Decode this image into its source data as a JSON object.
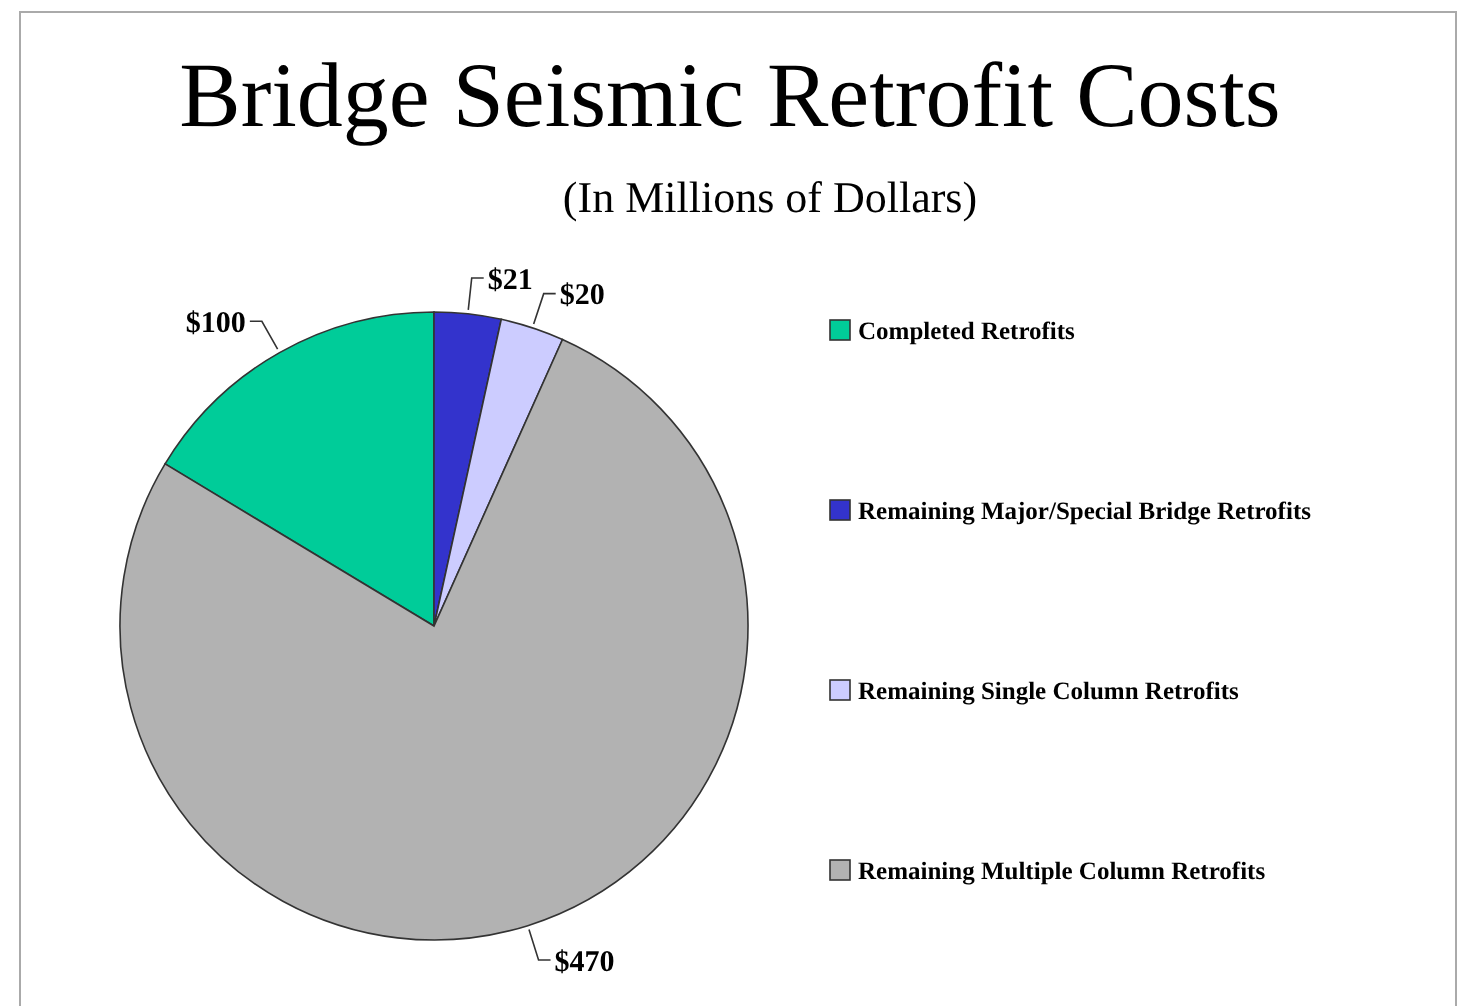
{
  "chart_data": {
    "type": "pie",
    "title": "Bridge Seismic Retrofit Costs",
    "subtitle": "(In Millions of Dollars)",
    "categories": [
      "Completed Retrofits",
      "Remaining Major/Special Bridge Retrofits",
      "Remaining Single Column Retrofits",
      "Remaining Multiple Column Retrofits"
    ],
    "values": [
      100,
      21,
      20,
      470
    ],
    "colors": [
      "#00cc99",
      "#3333cc",
      "#ccccff",
      "#b2b2b2"
    ],
    "value_labels": [
      "$100",
      "$21",
      "$20",
      "$470"
    ],
    "legend": "right"
  }
}
